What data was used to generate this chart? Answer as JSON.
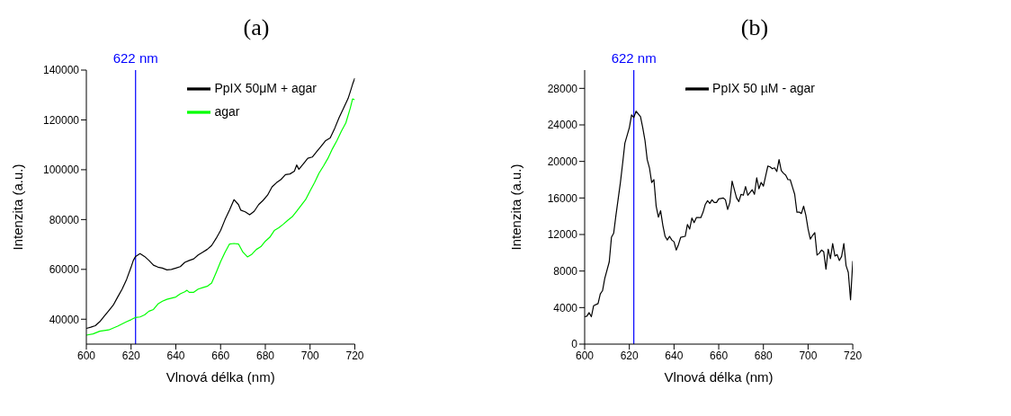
{
  "chart_data": [
    {
      "type": "line",
      "title": "(a)",
      "xlabel": "Vlnová délka (nm)",
      "ylabel": "Intenzita (a.u.)",
      "xlim": [
        600,
        720
      ],
      "xticks": [
        600,
        620,
        640,
        660,
        680,
        700,
        720
      ],
      "ylim": [
        30000,
        140000
      ],
      "yticks": [
        40000,
        60000,
        80000,
        100000,
        120000,
        140000
      ],
      "legend": "top right",
      "marker": "none",
      "line_style": "solid",
      "ref_lines": [
        {
          "axis": "x",
          "value": 622,
          "label": "622 nm",
          "color": "#0000ff"
        }
      ],
      "series": [
        {
          "name": "PpIX 50μM + agar",
          "color": "#000000",
          "x": [
            600,
            602,
            604,
            606,
            608,
            610,
            612,
            614,
            616,
            618,
            620,
            621,
            622,
            624,
            626,
            628,
            630,
            632,
            634,
            636,
            638,
            640,
            642,
            644,
            646,
            648,
            650,
            652,
            654,
            656,
            658,
            660,
            662,
            664,
            666,
            668,
            669,
            671,
            673,
            675,
            677,
            679,
            681,
            683,
            685,
            687,
            689,
            691,
            693,
            694,
            695,
            697,
            699,
            701,
            703,
            705,
            707,
            709,
            711,
            713,
            715,
            717,
            718,
            719,
            720
          ],
          "values": [
            36300,
            36800,
            37400,
            39000,
            41200,
            43400,
            45600,
            48900,
            52100,
            56000,
            60900,
            63600,
            65200,
            66300,
            65200,
            63600,
            61700,
            60900,
            60500,
            59800,
            60000,
            60500,
            61100,
            62800,
            63600,
            64200,
            65800,
            66900,
            68000,
            69600,
            72400,
            75600,
            80000,
            83800,
            88000,
            86000,
            83800,
            83100,
            81900,
            83300,
            86000,
            87700,
            89800,
            93100,
            94800,
            96100,
            98000,
            98300,
            99400,
            101900,
            100200,
            102400,
            104600,
            105100,
            107300,
            109500,
            111700,
            112800,
            116600,
            121000,
            124800,
            128600,
            131400,
            134300,
            136800
          ]
        },
        {
          "name": "agar",
          "color": "#00ff00",
          "x": [
            600,
            603,
            606,
            610,
            614,
            618,
            620,
            622,
            624,
            626,
            628,
            630,
            632,
            634,
            636,
            640,
            642,
            644,
            645,
            646,
            648,
            650,
            652,
            654,
            656,
            658,
            660,
            662,
            664,
            666,
            668,
            670,
            672,
            674,
            676,
            678,
            680,
            682,
            684,
            686,
            688,
            690,
            692,
            694,
            696,
            698,
            700,
            702,
            704,
            706,
            708,
            710,
            712,
            714,
            716,
            718,
            719,
            720
          ],
          "values": [
            33600,
            34100,
            35200,
            35700,
            37200,
            39000,
            39800,
            40700,
            40900,
            41700,
            43200,
            43900,
            46100,
            47200,
            48000,
            48900,
            50200,
            51000,
            51600,
            50800,
            50800,
            52100,
            52700,
            53200,
            54500,
            58700,
            63100,
            66900,
            70200,
            70400,
            70200,
            66900,
            65000,
            66100,
            68000,
            69100,
            71300,
            72900,
            75600,
            76700,
            78100,
            79700,
            81100,
            83300,
            85700,
            88000,
            91500,
            94800,
            98600,
            101500,
            104600,
            108400,
            111700,
            115500,
            118800,
            124800,
            128400,
            128100
          ]
        }
      ]
    },
    {
      "type": "line",
      "title": "(b)",
      "xlabel": "Vlnová délka (nm)",
      "ylabel": "Intenzita (a.u.)",
      "xlim": [
        600,
        720
      ],
      "xticks": [
        600,
        620,
        640,
        660,
        680,
        700,
        720
      ],
      "ylim": [
        0,
        30000
      ],
      "yticks": [
        0,
        4000,
        8000,
        12000,
        16000,
        20000,
        24000,
        28000
      ],
      "legend": "top right",
      "marker": "none",
      "line_style": "solid",
      "ref_lines": [
        {
          "axis": "x",
          "value": 622,
          "label": "622 nm",
          "color": "#0000ff"
        }
      ],
      "series": [
        {
          "name": "PpIX 50 µM - agar",
          "color": "#000000",
          "x": [
            600,
            601,
            602,
            603,
            604,
            606,
            607,
            608,
            609,
            611,
            612,
            613,
            614,
            615,
            616,
            617,
            618,
            620,
            621,
            622,
            623,
            625,
            626,
            627,
            628,
            629,
            630,
            631,
            632,
            633,
            634,
            635,
            636,
            637,
            638,
            639,
            640,
            641,
            642,
            643,
            645,
            646,
            647,
            648,
            649,
            650,
            652,
            653,
            654,
            655,
            656,
            657,
            658,
            659,
            660,
            662,
            663,
            664,
            665,
            666,
            667,
            668,
            669,
            670,
            671,
            672,
            673,
            675,
            676,
            677,
            678,
            679,
            680,
            681,
            682,
            683,
            684,
            685,
            686,
            687,
            688,
            689,
            690,
            691,
            692,
            693,
            694,
            695,
            696,
            697,
            698,
            699,
            700,
            701,
            702,
            703,
            704,
            705,
            706,
            707,
            708,
            709,
            710,
            711,
            712,
            713,
            714,
            715,
            716,
            717,
            718,
            719,
            720
          ],
          "values": [
            3000,
            3060,
            3450,
            3000,
            4200,
            4440,
            5500,
            5850,
            7200,
            9000,
            11700,
            12150,
            14100,
            15900,
            17700,
            19800,
            22000,
            23700,
            25100,
            24800,
            25500,
            24900,
            23700,
            22300,
            20200,
            19300,
            17700,
            18000,
            15100,
            13900,
            14600,
            13000,
            11800,
            11400,
            11800,
            11400,
            11200,
            10300,
            10900,
            11700,
            11800,
            13100,
            12600,
            13800,
            13300,
            13850,
            13850,
            14450,
            15300,
            15700,
            15400,
            15800,
            15500,
            15500,
            15900,
            16000,
            15800,
            14750,
            15500,
            17850,
            16900,
            16000,
            15600,
            16400,
            16300,
            17250,
            16300,
            16900,
            16400,
            18200,
            17000,
            17700,
            17300,
            18400,
            19500,
            19400,
            19200,
            19300,
            18900,
            20200,
            19000,
            18700,
            18500,
            18000,
            18000,
            17200,
            16400,
            14450,
            14450,
            14300,
            15100,
            14100,
            12600,
            11500,
            11900,
            12200,
            9750,
            9950,
            10300,
            10100,
            8200,
            10400,
            9350,
            11000,
            9650,
            9800,
            9150,
            9600,
            11000,
            8600,
            7850,
            4850,
            9100
          ]
        }
      ]
    }
  ]
}
